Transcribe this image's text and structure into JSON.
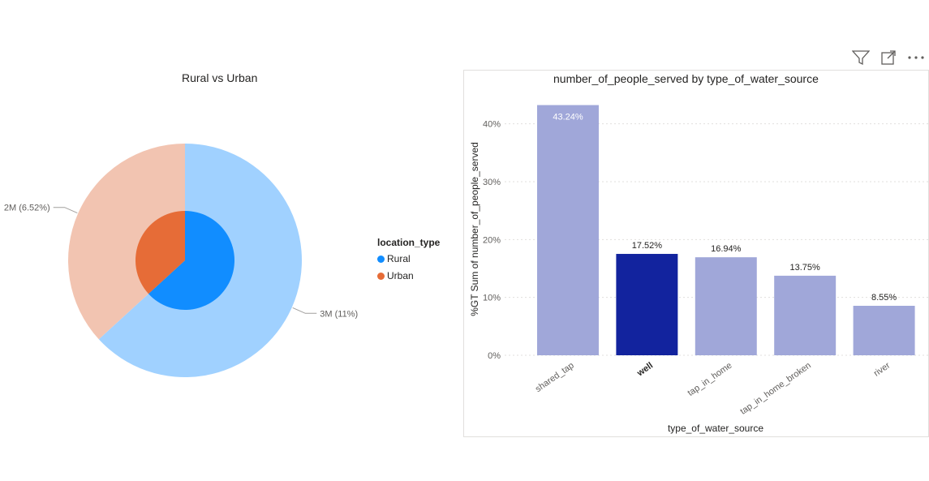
{
  "header_icons": [
    "filter-icon",
    "focus-mode-icon",
    "more-options-icon"
  ],
  "pie_visual": {
    "chart_data": {
      "type": "pie",
      "title": "Rural vs Urban",
      "legend_title": "location_type",
      "legend_position": "right",
      "outer_ring": {
        "slices": [
          {
            "name": "Rural",
            "value": 63.2,
            "color": "#a0d1ff",
            "label": "3M (11%)"
          },
          {
            "name": "Urban",
            "value": 36.8,
            "color": "#f2c4b1",
            "label": "2M (6.52%)"
          }
        ]
      },
      "inner_ring": {
        "slices": [
          {
            "name": "Rural",
            "value": 63.2,
            "color": "#118dff"
          },
          {
            "name": "Urban",
            "value": 36.8,
            "color": "#e66c37"
          }
        ]
      }
    },
    "legend_items": [
      {
        "label": "Rural",
        "color": "#118dff"
      },
      {
        "label": "Urban",
        "color": "#e66c37"
      }
    ]
  },
  "bar_visual": {
    "chart_data": {
      "type": "bar",
      "title": "number_of_people_served by type_of_water_source",
      "xlabel": "type_of_water_source",
      "ylabel": "%GT Sum of number_of_people_served",
      "categories": [
        "shared_tap",
        "well",
        "tap_in_home",
        "tap_in_home_broken",
        "river"
      ],
      "values": [
        43.24,
        17.52,
        16.94,
        13.75,
        8.55
      ],
      "data_labels": [
        "43.24%",
        "17.52%",
        "16.94%",
        "13.75%",
        "8.55%"
      ],
      "highlighted_category": "well",
      "bar_color": "#a0a7d9",
      "highlight_color": "#12239e",
      "yticks": [
        0,
        10,
        20,
        30,
        40
      ],
      "ytick_labels": [
        "0%",
        "10%",
        "20%",
        "30%",
        "40%"
      ],
      "ylim": [
        0,
        45
      ],
      "grid": true
    }
  }
}
